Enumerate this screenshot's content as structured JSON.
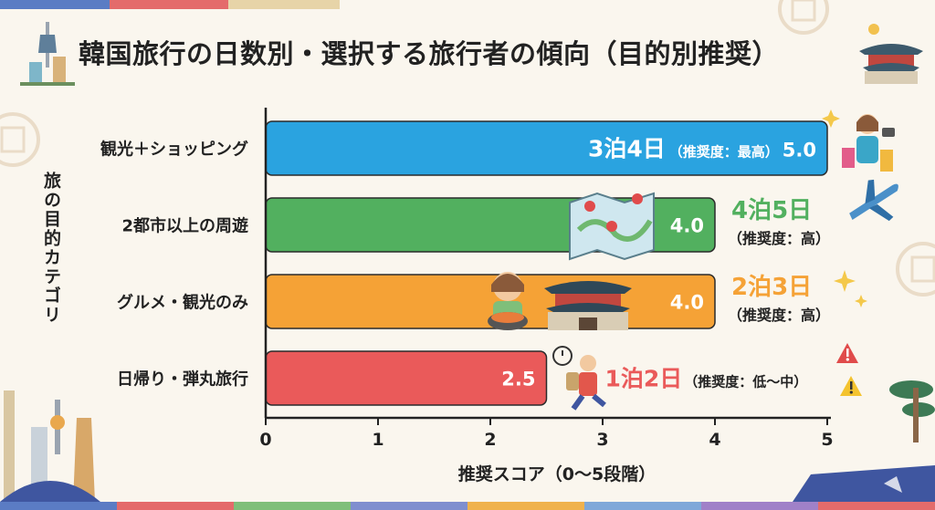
{
  "title": "韓国旅行の日数別・選択する旅行者の傾向（目的別推奨）",
  "colors": {
    "background": "#faf6ee",
    "blue": "#2aa3e0",
    "green": "#52b05f",
    "orange": "#f5a236",
    "red": "#ea5a5a",
    "dark": "#222222"
  },
  "chart_data": {
    "type": "bar",
    "orientation": "horizontal",
    "title": "韓国旅行の日数別・選択する旅行者の傾向（目的別推奨）",
    "xlabel": "推奨スコア（0〜5段階）",
    "ylabel": "旅の目的カテゴリ",
    "xlim": [
      0,
      5
    ],
    "xticks": [
      "0",
      "1",
      "2",
      "3",
      "4",
      "5"
    ],
    "grid": false,
    "bars": [
      {
        "category": "観光＋ショッピング",
        "value": 5.0,
        "value_label": "5.0",
        "stay": "3泊4日",
        "note": "（推奨度：最高）",
        "color": "#2aa3e0"
      },
      {
        "category": "2都市以上の周遊",
        "value": 4.0,
        "value_label": "4.0",
        "stay": "4泊5日",
        "note": "（推奨度：高）",
        "color": "#52b05f"
      },
      {
        "category": "グルメ・観光のみ",
        "value": 4.0,
        "value_label": "4.0",
        "stay": "2泊3日",
        "note": "（推奨度：高）",
        "color": "#f5a236"
      },
      {
        "category": "日帰り・弾丸旅行",
        "value": 2.5,
        "value_label": "2.5",
        "stay": "1泊2日",
        "note": "（推奨度：低〜中）",
        "color": "#ea5a5a"
      }
    ]
  }
}
